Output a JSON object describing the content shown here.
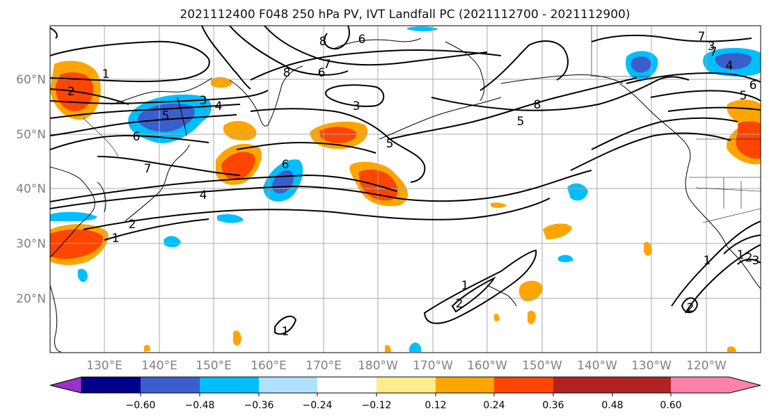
{
  "title": "2021112400 F048 250 hPa PV, IVT Landfall PC (2021112700 - 2021112900)",
  "lat_labels": [
    "60°N",
    "50°N",
    "40°N",
    "30°N",
    "20°N"
  ],
  "lon_labels": [
    "130°E",
    "140°E",
    "150°E",
    "160°E",
    "170°E",
    "180°W",
    "170°W",
    "160°W",
    "150°W",
    "140°W",
    "130°W",
    "120°W"
  ],
  "colorbar": {
    "ticks": [
      "−0.60",
      "−0.48",
      "−0.36",
      "−0.24",
      "−0.12",
      "0.12",
      "0.24",
      "0.36",
      "0.48",
      "0.60"
    ],
    "colors": [
      "#9932cc",
      "#00008b",
      "#3a5fcd",
      "#00bfff",
      "#b0e2ff",
      "#ffffff",
      "#ffec8b",
      "#ffa500",
      "#ff4500",
      "#b22222",
      "#ff82ab"
    ]
  },
  "contour_labels": [
    "1",
    "2",
    "3",
    "4",
    "5",
    "6",
    "7",
    "8",
    "6",
    "7",
    "8",
    "6",
    "7",
    "3",
    "4",
    "5",
    "6",
    "7",
    "3",
    "5",
    "8",
    "5",
    "6",
    "4",
    "2",
    "1",
    "1",
    "2",
    "1",
    "1",
    "2",
    "1",
    "2",
    "3"
  ]
}
